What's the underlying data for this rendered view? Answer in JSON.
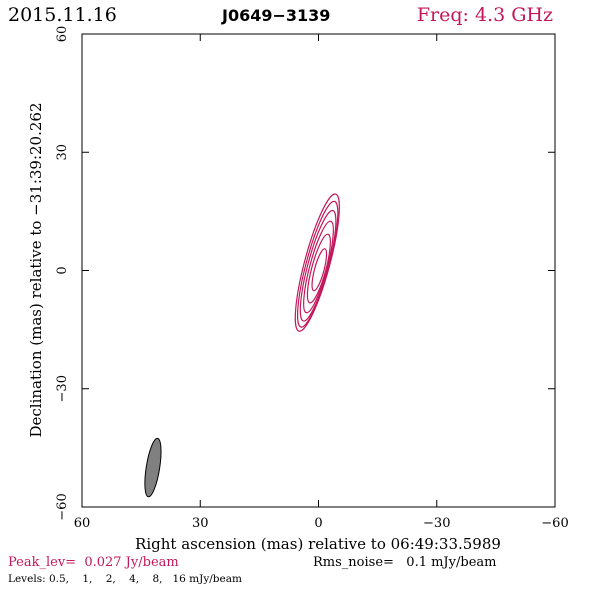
{
  "header": {
    "date": "2015.11.16",
    "source": "J0649−3139",
    "freq": "Freq: 4.3 GHz",
    "freq_color": "#c2185b"
  },
  "footer": {
    "peak": "Peak_lev=  0.027 Jy/beam",
    "rms": "Rms_noise=   0.1 mJy/beam",
    "levels": "Levels: 0.5,    1,    2,    4,    8,   16 mJy/beam"
  },
  "chart_data": {
    "type": "contour",
    "xlabel": "Right ascension (mas) relative to 06:49:33.5989",
    "ylabel": "Declination (mas) relative to −31:39:20.262",
    "xlim": [
      60,
      -60
    ],
    "ylim": [
      -60,
      60
    ],
    "xticks": [
      {
        "value": 60,
        "label": "60"
      },
      {
        "value": 30,
        "label": "30"
      },
      {
        "value": 0,
        "label": "0"
      },
      {
        "value": -30,
        "label": "−30"
      },
      {
        "value": -60,
        "label": "−60"
      }
    ],
    "yticks": [
      {
        "value": -60,
        "label": "−60"
      },
      {
        "value": -30,
        "label": "−30"
      },
      {
        "value": 0,
        "label": "0"
      },
      {
        "value": 30,
        "label": "30"
      },
      {
        "value": 60,
        "label": "60"
      }
    ],
    "contour_color": "#c2185b",
    "contour_levels_mJy": [
      0.5,
      1,
      2,
      4,
      8,
      16
    ],
    "contours": [
      {
        "level": 0.5,
        "center_x": 0.3,
        "center_y": 2.0,
        "semi_major": 18.0,
        "semi_minor": 3.2,
        "pa_deg": 165
      },
      {
        "level": 1,
        "center_x": 0.2,
        "center_y": 1.6,
        "semi_major": 16.5,
        "semi_minor": 2.9,
        "pa_deg": 165
      },
      {
        "level": 2,
        "center_x": 0.1,
        "center_y": 1.2,
        "semi_major": 14.5,
        "semi_minor": 2.6,
        "pa_deg": 165
      },
      {
        "level": 4,
        "center_x": 0.0,
        "center_y": 0.9,
        "semi_major": 12.0,
        "semi_minor": 2.2,
        "pa_deg": 165
      },
      {
        "level": 8,
        "center_x": -0.1,
        "center_y": 0.5,
        "semi_major": 9.0,
        "semi_minor": 1.8,
        "pa_deg": 165
      },
      {
        "level": 16,
        "center_x": -0.2,
        "center_y": 0.2,
        "semi_major": 5.5,
        "semi_minor": 1.2,
        "pa_deg": 165
      }
    ],
    "beam": {
      "center_x": 42.0,
      "center_y": -50.0,
      "semi_major": 7.5,
      "semi_minor": 1.7,
      "pa_deg": 171,
      "color": "#808080"
    }
  }
}
